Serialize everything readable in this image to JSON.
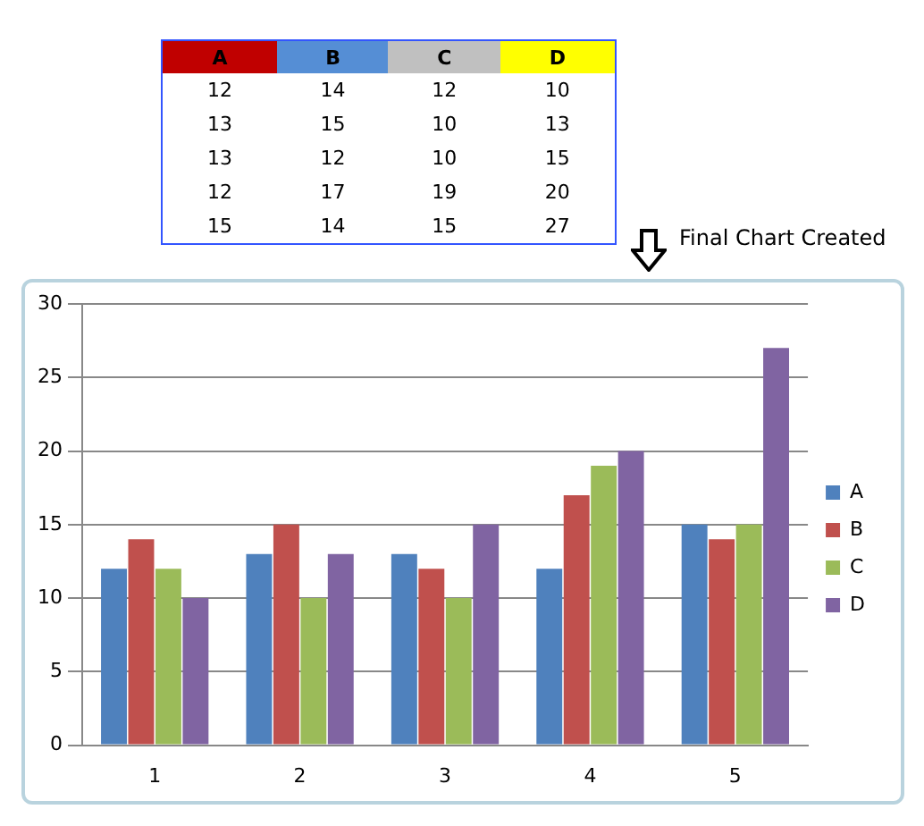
{
  "chart_data": [
    {
      "type": "other",
      "categories": [
        "A",
        "B",
        "C",
        "D"
      ],
      "cell_labels": [
        [
          "12",
          "14",
          "12",
          "10"
        ],
        [
          "13",
          "15",
          "10",
          "13"
        ],
        [
          "13",
          "12",
          "10",
          "15"
        ],
        [
          "12",
          "17",
          "19",
          "20"
        ],
        [
          "15",
          "14",
          "15",
          "27"
        ]
      ]
    },
    {
      "type": "bar",
      "categories": [
        "1",
        "2",
        "3",
        "4",
        "5"
      ],
      "series": [
        {
          "name": "A",
          "color": "#4f81bd",
          "values": [
            12,
            13,
            13,
            12,
            15
          ]
        },
        {
          "name": "B",
          "color": "#c0504d",
          "values": [
            14,
            15,
            12,
            17,
            14
          ]
        },
        {
          "name": "C",
          "color": "#9bbb59",
          "values": [
            12,
            10,
            10,
            19,
            15
          ]
        },
        {
          "name": "D",
          "color": "#8064a2",
          "values": [
            10,
            13,
            15,
            20,
            27
          ]
        }
      ],
      "ylim": [
        0,
        30
      ],
      "yticks": [
        0,
        5,
        10,
        15,
        20,
        25,
        30
      ],
      "grid": "y",
      "legend": "right",
      "annotations": [
        "Final Chart Created"
      ]
    }
  ]
}
